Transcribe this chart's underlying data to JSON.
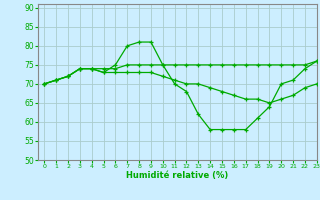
{
  "xlabel": "Humidité relative (%)",
  "bg_color": "#cceeff",
  "grid_color": "#aacccc",
  "line_color": "#00aa00",
  "xlim": [
    -0.5,
    23
  ],
  "ylim": [
    50,
    91
  ],
  "yticks": [
    50,
    55,
    60,
    65,
    70,
    75,
    80,
    85,
    90
  ],
  "xticks": [
    0,
    1,
    2,
    3,
    4,
    5,
    6,
    7,
    8,
    9,
    10,
    11,
    12,
    13,
    14,
    15,
    16,
    17,
    18,
    19,
    20,
    21,
    22,
    23
  ],
  "lines": [
    {
      "x": [
        0,
        1,
        2,
        3,
        4,
        5,
        6,
        7,
        8,
        9,
        10,
        11,
        12,
        13,
        14,
        15,
        16,
        17,
        18,
        19,
        20,
        21,
        22,
        23
      ],
      "y": [
        70,
        71,
        72,
        74,
        74,
        73,
        75,
        80,
        81,
        81,
        75,
        70,
        68,
        62,
        58,
        58,
        58,
        58,
        61,
        64,
        70,
        71,
        74,
        76
      ]
    },
    {
      "x": [
        0,
        1,
        2,
        3,
        4,
        5,
        6,
        7,
        8,
        9,
        10,
        11,
        12,
        13,
        14,
        15,
        16,
        17,
        18,
        19,
        20,
        21,
        22,
        23
      ],
      "y": [
        70,
        71,
        72,
        74,
        74,
        74,
        74,
        75,
        75,
        75,
        75,
        75,
        75,
        75,
        75,
        75,
        75,
        75,
        75,
        75,
        75,
        75,
        75,
        76
      ]
    },
    {
      "x": [
        0,
        1,
        2,
        3,
        4,
        5,
        6,
        7,
        8,
        9,
        10,
        11,
        12,
        13,
        14,
        15,
        16,
        17,
        18,
        19,
        20,
        21,
        22,
        23
      ],
      "y": [
        70,
        71,
        72,
        74,
        74,
        73,
        73,
        73,
        73,
        73,
        72,
        71,
        70,
        70,
        69,
        68,
        67,
        66,
        66,
        65,
        66,
        67,
        69,
        70
      ]
    }
  ]
}
